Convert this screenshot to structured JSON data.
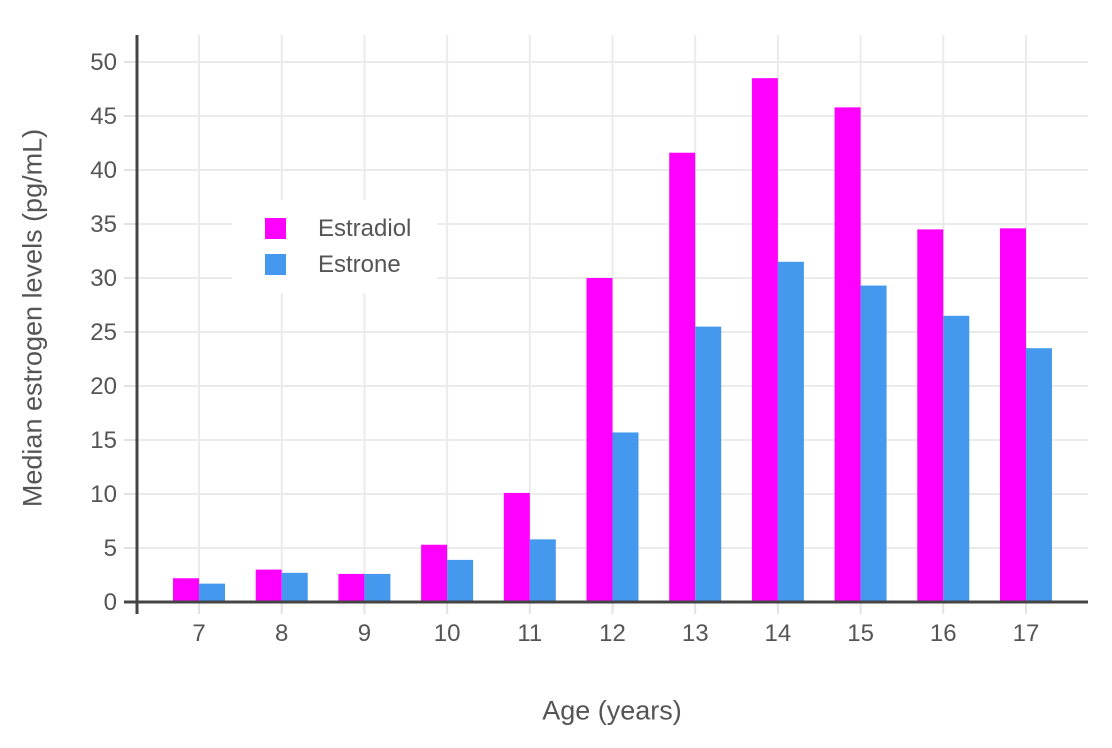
{
  "chart_data": {
    "type": "bar",
    "title": "",
    "xlabel": "Age (years)",
    "ylabel": "Median estrogen levels (pg/mL)",
    "categories": [
      7,
      8,
      9,
      10,
      11,
      12,
      13,
      14,
      15,
      16,
      17
    ],
    "series": [
      {
        "name": "Estradiol",
        "color": "#FF00FF",
        "values": [
          2.2,
          3.0,
          2.6,
          5.3,
          10.1,
          30.0,
          41.6,
          48.5,
          45.8,
          34.5,
          34.6
        ]
      },
      {
        "name": "Estrone",
        "color": "#4499EE",
        "values": [
          1.7,
          2.7,
          2.6,
          3.9,
          5.8,
          15.7,
          25.5,
          31.5,
          29.3,
          26.5,
          23.5
        ]
      }
    ],
    "y_ticks": [
      0,
      5,
      10,
      15,
      20,
      25,
      30,
      35,
      40,
      45,
      50
    ],
    "ylim": [
      0,
      52.5
    ],
    "xlim": [
      6.25,
      17.75
    ],
    "grid": true,
    "legend_position": "inside-top-left",
    "colors": {
      "axis_line": "#444444",
      "tick_text": "#555555",
      "gridline": "#EBEBEB",
      "tick_mark": "#E2E2E2",
      "background": "#FFFFFF"
    }
  }
}
